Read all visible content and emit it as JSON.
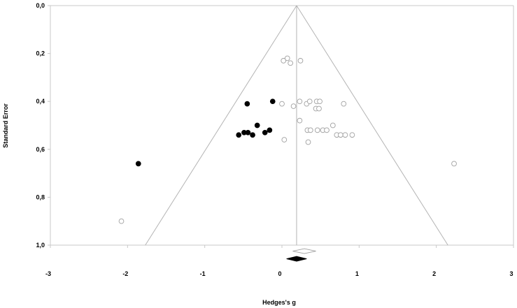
{
  "chart_data": {
    "type": "scatter",
    "subtype": "funnel-plot",
    "xlabel": "Hedges's g",
    "ylabel": "Standard Error",
    "xlim": [
      -3,
      3
    ],
    "ylim": [
      0,
      1
    ],
    "y_inverted": true,
    "x_ticks": [
      "-3",
      "-2",
      "-1",
      "0",
      "1",
      "2",
      "3"
    ],
    "y_ticks": [
      "0,0",
      "0,2",
      "0,4",
      "0,6",
      "0,8",
      "1,0"
    ],
    "center_estimate": 0.19,
    "series": [
      {
        "marker": "open-circle",
        "points": [
          [
            0.07,
            0.22
          ],
          [
            0.11,
            0.24
          ],
          [
            0.02,
            0.23
          ],
          [
            0.24,
            0.23
          ],
          [
            0.0,
            0.41
          ],
          [
            0.15,
            0.42
          ],
          [
            0.23,
            0.4
          ],
          [
            0.32,
            0.41
          ],
          [
            0.36,
            0.4
          ],
          [
            0.45,
            0.4
          ],
          [
            0.49,
            0.4
          ],
          [
            0.8,
            0.41
          ],
          [
            0.44,
            0.43
          ],
          [
            0.48,
            0.43
          ],
          [
            0.23,
            0.48
          ],
          [
            0.33,
            0.52
          ],
          [
            0.37,
            0.52
          ],
          [
            0.46,
            0.52
          ],
          [
            0.53,
            0.52
          ],
          [
            0.58,
            0.52
          ],
          [
            0.66,
            0.5
          ],
          [
            0.71,
            0.54
          ],
          [
            0.76,
            0.54
          ],
          [
            0.82,
            0.54
          ],
          [
            0.91,
            0.54
          ],
          [
            0.03,
            0.56
          ],
          [
            0.34,
            0.57
          ],
          [
            2.23,
            0.66
          ],
          [
            -2.08,
            0.9
          ]
        ]
      },
      {
        "marker": "filled-circle",
        "points": [
          [
            -0.45,
            0.41
          ],
          [
            -0.12,
            0.4
          ],
          [
            -0.32,
            0.5
          ],
          [
            -0.22,
            0.53
          ],
          [
            -0.16,
            0.52
          ],
          [
            -0.56,
            0.54
          ],
          [
            -0.49,
            0.53
          ],
          [
            -0.44,
            0.53
          ],
          [
            -0.38,
            0.54
          ],
          [
            -1.86,
            0.66
          ]
        ]
      }
    ],
    "summary_diamonds": [
      {
        "fill": "open",
        "center": 0.29,
        "low": 0.14,
        "high": 0.44,
        "y": 1.025
      },
      {
        "fill": "filled",
        "center": 0.19,
        "low": 0.06,
        "high": 0.32,
        "y": 1.057
      }
    ]
  },
  "colors": {
    "open_marker_stroke": "#a0a0a0",
    "filled_marker": "#000000",
    "funnel": "#b4b4b4",
    "axis": "#c8c8c8"
  }
}
